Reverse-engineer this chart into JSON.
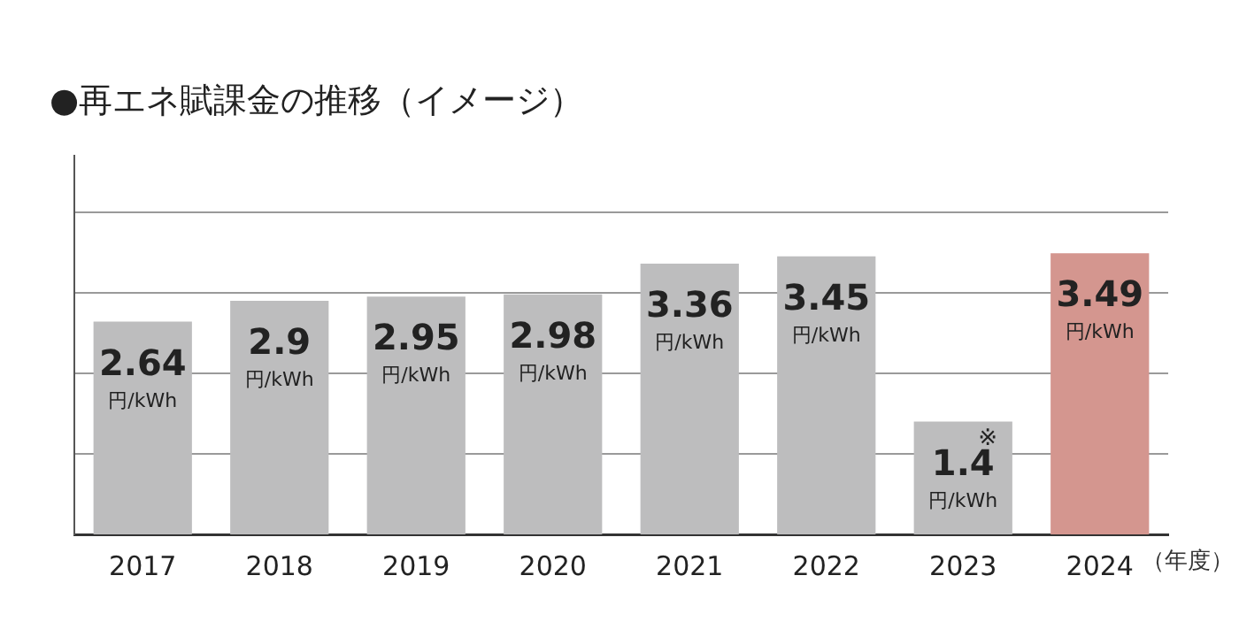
{
  "chart_data": {
    "type": "bar",
    "title": "●再エネ賦課金の推移（イメージ）",
    "xlabel": "（年度）",
    "categories": [
      "2017",
      "2018",
      "2019",
      "2020",
      "2021",
      "2022",
      "2023",
      "2024"
    ],
    "values": [
      2.64,
      2.9,
      2.95,
      2.98,
      3.36,
      3.45,
      1.4,
      3.49
    ],
    "colors": [
      "#bdbdbe",
      "#bdbdbe",
      "#bdbdbe",
      "#bdbdbe",
      "#bdbdbe",
      "#bdbdbe",
      "#bdbdbe",
      "#d4968f"
    ],
    "value_labels": [
      "2.64\n円/kWh",
      "2.9\n円/kWh",
      "2.95\n円/kWh",
      "2.98\n円/kWh",
      "3.36\n円/kWh",
      "3.45\n円/kWh",
      "1.4\n円/kWh",
      "3.49\n円/kWh"
    ],
    "annotations": [
      {
        "text": "※",
        "x": "2023",
        "y": 1.4
      }
    ],
    "ylim": [
      0,
      4.7
    ],
    "yticks": [
      {
        "value": 1,
        "label": null
      },
      {
        "value": 2,
        "label": null
      },
      {
        "value": 3,
        "label": null
      },
      {
        "value": 4,
        "label": null
      }
    ],
    "grid": "y",
    "tick_labels": "x"
  }
}
